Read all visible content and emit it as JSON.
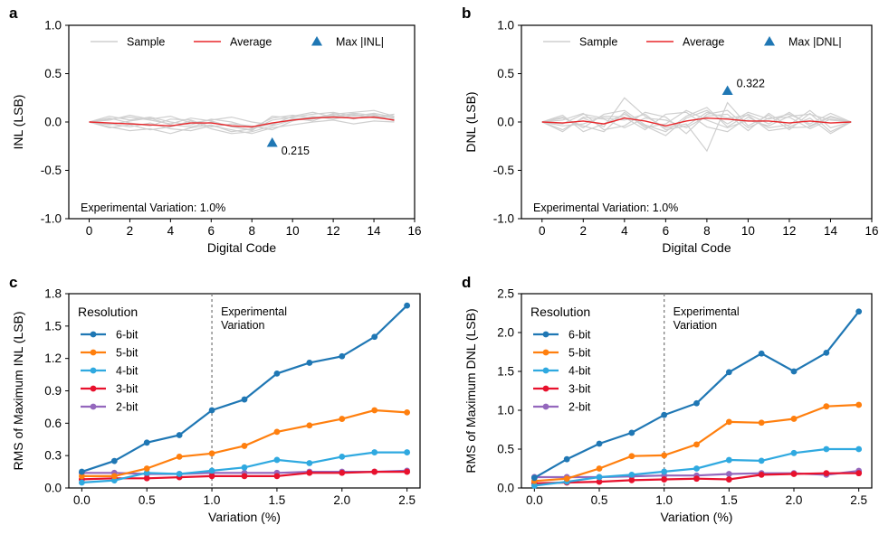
{
  "colors": {
    "sample": "#cfcfcf",
    "average": "#e8262a",
    "marker": "#1f77b4",
    "series": [
      "#1f77b4",
      "#ff7f0e",
      "#2fa9e0",
      "#e8112d",
      "#9467bd"
    ],
    "vline": "#808080"
  },
  "chart_data": [
    {
      "panel": "a",
      "type": "line",
      "xlabel": "Digital Code",
      "ylabel": "INL (LSB)",
      "xlim": [
        -1,
        16
      ],
      "ylim": [
        -1.0,
        1.0
      ],
      "xticks": [
        0,
        2,
        4,
        6,
        8,
        10,
        12,
        14,
        16
      ],
      "xtick_labels": [
        "0",
        "2",
        "4",
        "6",
        "8",
        "10",
        "12",
        "14",
        "16"
      ],
      "yticks": [
        -1.0,
        -0.5,
        0.0,
        0.5,
        1.0
      ],
      "ytick_labels": [
        "-1.0",
        "-0.5",
        "0.0",
        "0.5",
        "1.0"
      ],
      "legend": {
        "position": "top",
        "sample": "Sample",
        "average": "Average",
        "max": "Max |INL|"
      },
      "annotation": "Experimental Variation: 1.0%",
      "x": [
        0,
        1,
        2,
        3,
        4,
        5,
        6,
        7,
        8,
        9,
        10,
        11,
        12,
        13,
        14,
        15
      ],
      "samples": [
        [
          0.0,
          0.03,
          0.05,
          0.02,
          -0.02,
          0.04,
          0.01,
          -0.05,
          -0.08,
          0.02,
          0.05,
          0.08,
          0.1,
          0.06,
          0.09,
          0.05
        ],
        [
          0.0,
          -0.05,
          -0.09,
          -0.07,
          -0.12,
          -0.06,
          -0.03,
          -0.1,
          -0.07,
          -0.02,
          0.03,
          0.05,
          0.06,
          0.08,
          0.04,
          0.03
        ],
        [
          0.0,
          0.06,
          0.02,
          0.05,
          0.0,
          -0.03,
          0.03,
          0.0,
          -0.06,
          0.04,
          0.07,
          0.04,
          0.08,
          0.1,
          0.12,
          0.06
        ],
        [
          0.0,
          -0.02,
          -0.05,
          -0.01,
          -0.07,
          -0.09,
          -0.04,
          -0.08,
          -0.12,
          -0.06,
          -0.03,
          0.0,
          0.02,
          -0.02,
          0.01,
          0.0
        ],
        [
          0.0,
          0.04,
          -0.01,
          -0.04,
          0.03,
          0.02,
          -0.05,
          -0.02,
          -0.04,
          -0.08,
          0.01,
          0.06,
          0.03,
          0.07,
          0.05,
          0.08
        ],
        [
          0.0,
          -0.06,
          -0.03,
          -0.08,
          -0.05,
          0.01,
          -0.07,
          -0.12,
          -0.1,
          -0.04,
          0.02,
          0.03,
          0.07,
          0.04,
          0.06,
          0.02
        ],
        [
          0.0,
          0.02,
          0.07,
          0.03,
          0.06,
          -0.01,
          0.02,
          0.05,
          0.0,
          -0.03,
          0.06,
          0.1,
          0.05,
          0.09,
          0.07,
          0.04
        ],
        [
          0.0,
          -0.03,
          0.01,
          0.04,
          -0.03,
          -0.05,
          0.0,
          -0.04,
          -0.09,
          0.06,
          0.04,
          0.01,
          0.09,
          0.03,
          0.08,
          0.01
        ]
      ],
      "average": [
        0.0,
        -0.01,
        -0.02,
        -0.03,
        -0.04,
        -0.01,
        -0.01,
        -0.04,
        -0.05,
        -0.01,
        0.02,
        0.04,
        0.05,
        0.04,
        0.05,
        0.02
      ],
      "max_point": {
        "x": 9,
        "y": -0.215,
        "label": "0.215"
      }
    },
    {
      "panel": "b",
      "type": "line",
      "xlabel": "Digital Code",
      "ylabel": "DNL (LSB)",
      "xlim": [
        -1,
        16
      ],
      "ylim": [
        -1.0,
        1.0
      ],
      "xticks": [
        0,
        2,
        4,
        6,
        8,
        10,
        12,
        14,
        16
      ],
      "xtick_labels": [
        "0",
        "2",
        "4",
        "6",
        "8",
        "10",
        "12",
        "14",
        "16"
      ],
      "yticks": [
        -1.0,
        -0.5,
        0.0,
        0.5,
        1.0
      ],
      "ytick_labels": [
        "-1.0",
        "-0.5",
        "0.0",
        "0.5",
        "1.0"
      ],
      "legend": {
        "position": "top",
        "sample": "Sample",
        "average": "Average",
        "max": "Max |DNL|"
      },
      "annotation": "Experimental Variation: 1.0%",
      "x": [
        0,
        1,
        2,
        3,
        4,
        5,
        6,
        7,
        8,
        9,
        10,
        11,
        12,
        13,
        14,
        15
      ],
      "samples": [
        [
          0.0,
          0.05,
          -0.06,
          0.08,
          0.12,
          -0.03,
          -0.1,
          0.06,
          0.15,
          -0.05,
          0.08,
          -0.02,
          0.1,
          -0.04,
          0.06,
          0.0
        ],
        [
          0.0,
          -0.08,
          0.04,
          -0.05,
          0.25,
          0.06,
          -0.06,
          -0.02,
          -0.3,
          0.2,
          -0.04,
          0.07,
          -0.08,
          0.09,
          -0.1,
          0.0
        ],
        [
          0.0,
          0.02,
          0.09,
          -0.08,
          -0.04,
          0.1,
          0.05,
          -0.12,
          0.08,
          0.12,
          -0.06,
          0.04,
          0.05,
          -0.07,
          0.03,
          0.0
        ],
        [
          0.0,
          -0.04,
          -0.02,
          0.06,
          0.05,
          -0.08,
          0.08,
          0.1,
          -0.05,
          -0.1,
          0.05,
          -0.06,
          -0.03,
          0.12,
          -0.06,
          0.0
        ],
        [
          0.0,
          0.07,
          -0.1,
          -0.02,
          0.08,
          -0.04,
          -0.14,
          0.04,
          0.12,
          -0.02,
          0.1,
          0.03,
          0.08,
          -0.02,
          0.09,
          0.0
        ],
        [
          0.0,
          -0.1,
          0.05,
          0.03,
          -0.06,
          0.04,
          0.02,
          -0.06,
          0.06,
          0.08,
          -0.09,
          0.09,
          -0.05,
          0.04,
          -0.12,
          0.0
        ],
        [
          0.0,
          0.04,
          -0.04,
          -0.1,
          0.1,
          -0.06,
          -0.02,
          0.12,
          0.02,
          -0.06,
          0.02,
          -0.04,
          0.06,
          0.08,
          0.02,
          0.0
        ],
        [
          0.0,
          -0.02,
          0.08,
          0.04,
          0.02,
          0.08,
          -0.08,
          -0.04,
          0.1,
          0.04,
          0.07,
          -0.09,
          -0.06,
          -0.05,
          0.05,
          0.0
        ]
      ],
      "average": [
        0.0,
        -0.01,
        0.01,
        -0.02,
        0.04,
        0.01,
        -0.04,
        0.01,
        0.04,
        0.03,
        0.01,
        0.01,
        -0.01,
        0.01,
        -0.01,
        0.0
      ],
      "max_point": {
        "x": 9,
        "y": 0.322,
        "label": "0.322"
      }
    },
    {
      "panel": "c",
      "type": "line",
      "xlabel": "Variation (%)",
      "ylabel": "RMS of Maximum INL (LSB)",
      "xlim": [
        -0.1,
        2.6
      ],
      "ylim": [
        0.0,
        1.8
      ],
      "xticks": [
        0.0,
        0.5,
        1.0,
        1.5,
        2.0,
        2.5
      ],
      "xtick_labels": [
        "0.0",
        "0.5",
        "1.0",
        "1.5",
        "2.0",
        "2.5"
      ],
      "yticks": [
        0.0,
        0.3,
        0.6,
        0.9,
        1.2,
        1.5,
        1.8
      ],
      "ytick_labels": [
        "0.0",
        "0.3",
        "0.6",
        "0.9",
        "1.2",
        "1.5",
        "1.8"
      ],
      "legend_title": "Resolution",
      "vline": {
        "x": 1.0,
        "label_line1": "Experimental",
        "label_line2": "Variation"
      },
      "x": [
        0.0,
        0.25,
        0.5,
        0.75,
        1.0,
        1.25,
        1.5,
        1.75,
        2.0,
        2.25,
        2.5
      ],
      "series": [
        {
          "name": "6-bit",
          "values": [
            0.15,
            0.25,
            0.42,
            0.49,
            0.72,
            0.82,
            1.06,
            1.16,
            1.22,
            1.4,
            1.69
          ]
        },
        {
          "name": "5-bit",
          "values": [
            0.11,
            0.11,
            0.18,
            0.29,
            0.32,
            0.39,
            0.52,
            0.58,
            0.64,
            0.72,
            0.7
          ]
        },
        {
          "name": "4-bit",
          "values": [
            0.05,
            0.07,
            0.14,
            0.13,
            0.16,
            0.19,
            0.26,
            0.23,
            0.29,
            0.33,
            0.33
          ]
        },
        {
          "name": "3-bit",
          "values": [
            0.08,
            0.09,
            0.09,
            0.1,
            0.11,
            0.11,
            0.11,
            0.14,
            0.14,
            0.15,
            0.15
          ]
        },
        {
          "name": "2-bit",
          "values": [
            0.14,
            0.14,
            0.13,
            0.13,
            0.14,
            0.14,
            0.14,
            0.15,
            0.15,
            0.15,
            0.16
          ]
        }
      ]
    },
    {
      "panel": "d",
      "type": "line",
      "xlabel": "Variation (%)",
      "ylabel": "RMS of Maximum DNL (LSB)",
      "xlim": [
        -0.1,
        2.6
      ],
      "ylim": [
        0.0,
        2.5
      ],
      "xticks": [
        0.0,
        0.5,
        1.0,
        1.5,
        2.0,
        2.5
      ],
      "xtick_labels": [
        "0.0",
        "0.5",
        "1.0",
        "1.5",
        "2.0",
        "2.5"
      ],
      "yticks": [
        0.0,
        0.5,
        1.0,
        1.5,
        2.0,
        2.5
      ],
      "ytick_labels": [
        "0.0",
        "0.5",
        "1.0",
        "1.5",
        "2.0",
        "2.5"
      ],
      "legend_title": "Resolution",
      "vline": {
        "x": 1.0,
        "label_line1": "Experimental",
        "label_line2": "Variation"
      },
      "x": [
        0.0,
        0.25,
        0.5,
        0.75,
        1.0,
        1.25,
        1.5,
        1.75,
        2.0,
        2.25,
        2.5
      ],
      "series": [
        {
          "name": "6-bit",
          "values": [
            0.13,
            0.37,
            0.57,
            0.71,
            0.94,
            1.09,
            1.49,
            1.73,
            1.5,
            1.74,
            2.27
          ]
        },
        {
          "name": "5-bit",
          "values": [
            0.09,
            0.12,
            0.25,
            0.41,
            0.42,
            0.56,
            0.85,
            0.84,
            0.89,
            1.05,
            1.07
          ]
        },
        {
          "name": "4-bit",
          "values": [
            0.03,
            0.08,
            0.14,
            0.17,
            0.21,
            0.25,
            0.36,
            0.35,
            0.45,
            0.5,
            0.5
          ]
        },
        {
          "name": "3-bit",
          "values": [
            0.06,
            0.07,
            0.08,
            0.1,
            0.11,
            0.12,
            0.11,
            0.17,
            0.18,
            0.19,
            0.19
          ]
        },
        {
          "name": "2-bit",
          "values": [
            0.14,
            0.14,
            0.14,
            0.15,
            0.16,
            0.16,
            0.18,
            0.19,
            0.19,
            0.17,
            0.22
          ]
        }
      ]
    }
  ],
  "panel_labels": [
    "a",
    "b",
    "c",
    "d"
  ]
}
